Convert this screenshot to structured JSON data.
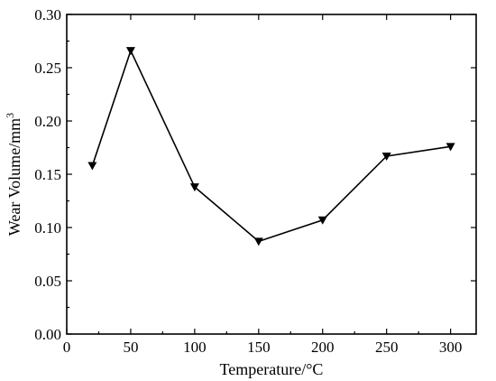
{
  "chart_data": {
    "type": "line",
    "xlabel": "Temperature/°C",
    "ylabel": "Wear Volume/mm",
    "ylabel_superscript": "3",
    "xlim": [
      0,
      320
    ],
    "ylim": [
      0.0,
      0.3
    ],
    "xticks": [
      0,
      50,
      100,
      150,
      200,
      250,
      300
    ],
    "xtick_labels": [
      "0",
      "50",
      "100",
      "150",
      "200",
      "250",
      "300"
    ],
    "yticks": [
      0.0,
      0.05,
      0.1,
      0.15,
      0.2,
      0.25,
      0.3
    ],
    "ytick_labels": [
      "0.00",
      "0.05",
      "0.10",
      "0.15",
      "0.20",
      "0.25",
      "0.30"
    ],
    "grid": false,
    "marker": "triangle-down",
    "series": [
      {
        "x": [
          20,
          50,
          100,
          150,
          200,
          250,
          300
        ],
        "values": [
          0.158,
          0.266,
          0.138,
          0.087,
          0.107,
          0.167,
          0.176
        ]
      }
    ]
  }
}
